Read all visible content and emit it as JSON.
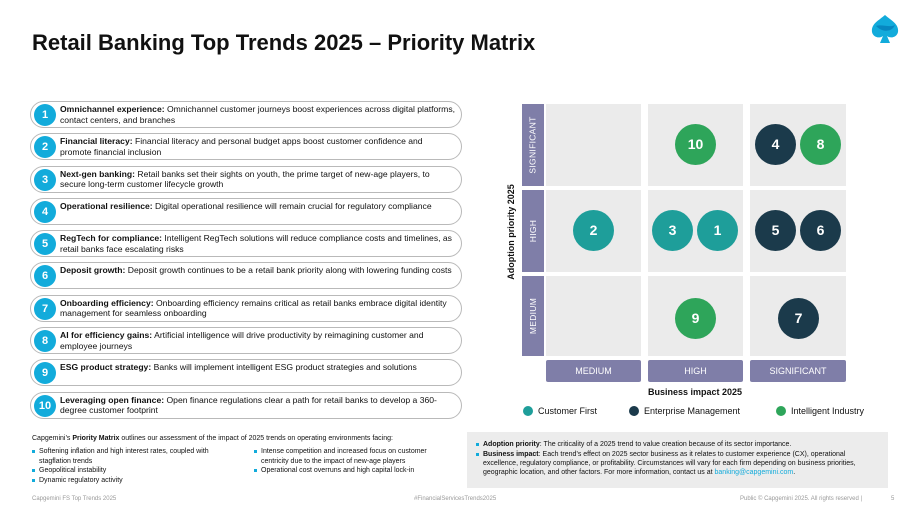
{
  "title": "Retail Banking Top Trends 2025 – Priority Matrix",
  "logo_icon": "spade-logo-icon",
  "trends": [
    {
      "n": "1",
      "name": "Omnichannel experience:",
      "desc": " Omnichannel customer journeys boost experiences across digital platforms, contact centers, and branches"
    },
    {
      "n": "2",
      "name": "Financial literacy:",
      "desc": " Financial literacy and personal budget apps boost customer confidence and promote financial inclusion"
    },
    {
      "n": "3",
      "name": "Next-gen banking:",
      "desc": " Retail banks set their sights on youth, the prime target of new-age players, to secure long-term customer lifecycle growth"
    },
    {
      "n": "4",
      "name": "Operational resilience:",
      "desc": " Digital operational resilience will remain crucial for regulatory compliance"
    },
    {
      "n": "5",
      "name": "RegTech for compliance:",
      "desc": " Intelligent RegTech solutions will reduce compliance costs and timelines, as retail banks face escalating risks"
    },
    {
      "n": "6",
      "name": "Deposit growth:",
      "desc": " Deposit growth continues to be a retail bank priority along with lowering funding costs"
    },
    {
      "n": "7",
      "name": "Onboarding efficiency:",
      "desc": " Onboarding efficiency remains critical as retail banks embrace digital identity management for seamless onboarding"
    },
    {
      "n": "8",
      "name": "AI for efficiency gains:",
      "desc": " Artificial intelligence will drive productivity by reimagining customer and employee journeys"
    },
    {
      "n": "9",
      "name": "ESG product strategy:",
      "desc": " Banks will implement intelligent ESG product strategies and solutions"
    },
    {
      "n": "10",
      "name": "Leveraging open finance:",
      "desc": " Open finance regulations clear a path for retail banks to develop a 360-degree customer footprint"
    }
  ],
  "matrix": {
    "y_axis_title": "Adoption priority 2025",
    "x_axis_title": "Business impact 2025",
    "y_levels": [
      "SIGNIFICANT",
      "HIGH",
      "MEDIUM"
    ],
    "x_levels": [
      "MEDIUM",
      "HIGH",
      "SIGNIFICANT"
    ],
    "colors": {
      "customer_first": "#1e9e9a",
      "enterprise_management": "#1b3a4b",
      "intelligent_industry": "#2ea55a",
      "list_accent": "#12abdb",
      "axis_label_bg": "#7f7ea8"
    },
    "dots": [
      {
        "label": "10",
        "category": "Intelligent Industry",
        "impact": "HIGH",
        "priority": "SIGNIFICANT"
      },
      {
        "label": "4",
        "category": "Enterprise Management",
        "impact": "SIGNIFICANT",
        "priority": "SIGNIFICANT"
      },
      {
        "label": "8",
        "category": "Intelligent Industry",
        "impact": "SIGNIFICANT",
        "priority": "SIGNIFICANT"
      },
      {
        "label": "2",
        "category": "Customer First",
        "impact": "MEDIUM",
        "priority": "HIGH"
      },
      {
        "label": "3",
        "category": "Customer First",
        "impact": "HIGH",
        "priority": "HIGH"
      },
      {
        "label": "1",
        "category": "Customer First",
        "impact": "HIGH",
        "priority": "HIGH"
      },
      {
        "label": "5",
        "category": "Enterprise Management",
        "impact": "SIGNIFICANT",
        "priority": "HIGH"
      },
      {
        "label": "6",
        "category": "Enterprise Management",
        "impact": "SIGNIFICANT",
        "priority": "HIGH"
      },
      {
        "label": "9",
        "category": "Intelligent Industry",
        "impact": "HIGH",
        "priority": "MEDIUM"
      },
      {
        "label": "7",
        "category": "Enterprise Management",
        "impact": "SIGNIFICANT",
        "priority": "MEDIUM"
      }
    ]
  },
  "legend": [
    "Customer First",
    "Enterprise Management",
    "Intelligent Industry"
  ],
  "notes_left": {
    "intro_pre": "Capgemini’s ",
    "intro_bold": "Priority Matrix",
    "intro_post": " outlines our assessment of the impact of 2025 trends on operating environments facing:",
    "col1": [
      "Softening inflation and high interest rates, coupled with stagflation trends",
      "Geopolitical instability",
      "Dynamic regulatory activity"
    ],
    "col2": [
      "Intense competition and increased focus on customer centricity due to the impact of new-age players",
      "Operational cost overruns and high capital lock-in"
    ]
  },
  "notes_right": {
    "adoption_label": "Adoption priority",
    "adoption_text": ": The criticality of a 2025 trend to value creation because of its sector importance.",
    "impact_label": "Business impact",
    "impact_text": ": Each trend’s effect on 2025 sector business as it relates to customer experience (CX), operational excellence, regulatory compliance, or profitability. Circumstances will vary for each firm depending on business priorities, geographic location, and other factors. For more information, contact us at ",
    "email": "banking@capgemini.com",
    "end": "."
  },
  "footer": {
    "left": "Capgemini FS Top Trends 2025",
    "center": "#FinancialServicesTrends2025",
    "right": "Public © Capgemini 2025. All rights reserved",
    "sep": "|",
    "page": "5"
  }
}
